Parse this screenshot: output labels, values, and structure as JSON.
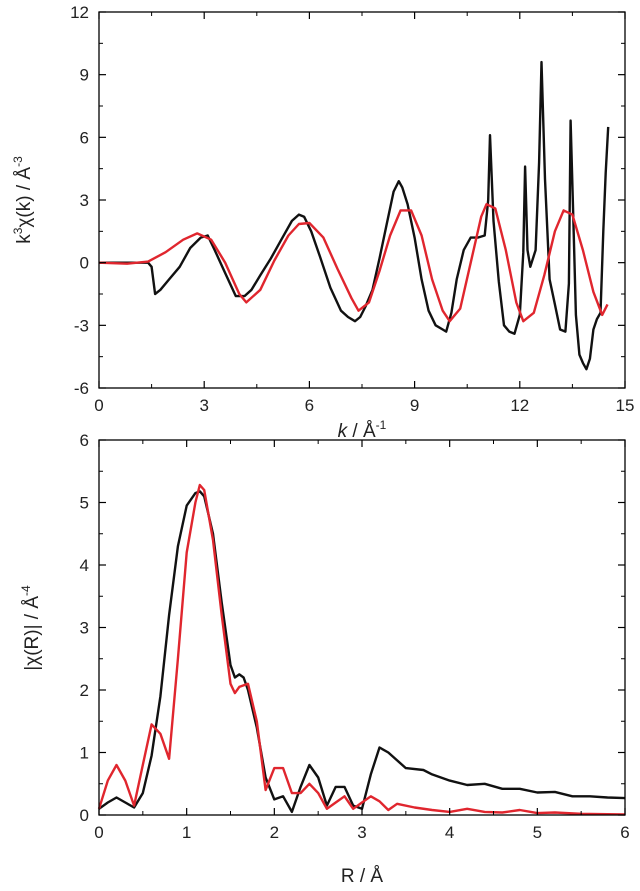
{
  "colors": {
    "experiment": "#111111",
    "fit": "#e0262e",
    "axis": "#000000"
  },
  "chart_data": [
    {
      "type": "line",
      "xlabel": {
        "italic": "k",
        "text": " / Å",
        "sup": "-1"
      },
      "ylabel": {
        "pre": "k",
        "sup1": "3",
        "mid": "χ(k) / Å",
        "sup2": "-3"
      },
      "xlim": [
        0,
        15
      ],
      "ylim": [
        -6,
        12
      ],
      "xticks": [
        0,
        3,
        6,
        9,
        12,
        15
      ],
      "yticks": [
        -6,
        -3,
        0,
        3,
        6,
        9,
        12
      ],
      "xtick_labels": [
        "0",
        "3",
        "6",
        "9",
        "12",
        "15"
      ],
      "ytick_labels": [
        "-6",
        "-3",
        "0",
        "3",
        "6",
        "9",
        "12"
      ],
      "grid": false,
      "series": [
        {
          "color": "#111111",
          "x": [
            0,
            1.4,
            1.5,
            1.6,
            1.75,
            2.0,
            2.3,
            2.6,
            2.9,
            3.1,
            3.3,
            3.6,
            3.9,
            4.15,
            4.35,
            4.6,
            4.9,
            5.2,
            5.5,
            5.7,
            5.85,
            6.05,
            6.3,
            6.6,
            6.9,
            7.1,
            7.3,
            7.45,
            7.6,
            7.8,
            8.0,
            8.2,
            8.4,
            8.55,
            8.65,
            8.8,
            9.0,
            9.2,
            9.4,
            9.6,
            9.8,
            9.9,
            10.05,
            10.2,
            10.4,
            10.6,
            10.8,
            11.0,
            11.1,
            11.15,
            11.25,
            11.4,
            11.55,
            11.7,
            11.85,
            12.0,
            12.1,
            12.15,
            12.22,
            12.3,
            12.45,
            12.55,
            12.62,
            12.72,
            12.85,
            13.0,
            13.15,
            13.3,
            13.4,
            13.45,
            13.52,
            13.6,
            13.7,
            13.8,
            13.9,
            14.0,
            14.1,
            14.2,
            14.3,
            14.38,
            14.45,
            14.52
          ],
          "values": [
            0,
            0,
            -0.2,
            -1.5,
            -1.3,
            -0.8,
            -0.2,
            0.7,
            1.2,
            1.3,
            0.6,
            -0.5,
            -1.6,
            -1.6,
            -1.3,
            -0.6,
            0.2,
            1.1,
            2.0,
            2.3,
            2.2,
            1.5,
            0.3,
            -1.2,
            -2.3,
            -2.6,
            -2.8,
            -2.6,
            -2.1,
            -1.3,
            0.2,
            1.8,
            3.4,
            3.9,
            3.6,
            2.8,
            1.2,
            -0.8,
            -2.3,
            -3.0,
            -3.2,
            -3.3,
            -2.4,
            -0.8,
            0.6,
            1.2,
            1.2,
            1.3,
            3.0,
            6.1,
            2.0,
            -0.9,
            -3.0,
            -3.3,
            -3.4,
            -2.5,
            0.5,
            4.6,
            0.6,
            -0.2,
            0.6,
            4.8,
            9.6,
            4.0,
            -0.8,
            -2.0,
            -3.2,
            -3.3,
            -1.0,
            6.8,
            2.5,
            -2.5,
            -4.4,
            -4.8,
            -5.1,
            -4.6,
            -3.2,
            -2.7,
            -2.4,
            1.5,
            4.3,
            6.5
          ]
        },
        {
          "color": "#e0262e",
          "x": [
            0,
            0.8,
            1.4,
            1.9,
            2.4,
            2.8,
            3.2,
            3.6,
            4.0,
            4.2,
            4.6,
            5.0,
            5.4,
            5.7,
            6.0,
            6.4,
            6.8,
            7.2,
            7.4,
            7.7,
            8.0,
            8.3,
            8.6,
            8.9,
            9.2,
            9.5,
            9.8,
            10.0,
            10.3,
            10.6,
            10.9,
            11.05,
            11.3,
            11.6,
            11.9,
            12.1,
            12.4,
            12.7,
            13.0,
            13.25,
            13.5,
            13.8,
            14.1,
            14.35,
            14.5
          ],
          "values": [
            0,
            -0.05,
            0.05,
            0.5,
            1.1,
            1.4,
            1.1,
            0.0,
            -1.5,
            -1.9,
            -1.3,
            0.1,
            1.3,
            1.85,
            1.9,
            1.2,
            -0.3,
            -1.7,
            -2.3,
            -1.9,
            -0.4,
            1.3,
            2.5,
            2.5,
            1.3,
            -0.8,
            -2.3,
            -2.8,
            -2.2,
            0.0,
            2.2,
            2.8,
            2.6,
            0.6,
            -1.9,
            -2.8,
            -2.4,
            -0.6,
            1.5,
            2.5,
            2.3,
            0.6,
            -1.4,
            -2.5,
            -2.0
          ]
        }
      ]
    },
    {
      "type": "line",
      "xlabel": {
        "text": "R / Å"
      },
      "ylabel": {
        "text": "|χ(R)| / Å",
        "sup": "-4"
      },
      "xlim": [
        0,
        6
      ],
      "ylim": [
        0,
        6
      ],
      "xticks": [
        0,
        1,
        2,
        3,
        4,
        5,
        6
      ],
      "yticks": [
        0,
        1,
        2,
        3,
        4,
        5,
        6
      ],
      "xtick_labels": [
        "0",
        "1",
        "2",
        "3",
        "4",
        "5",
        "6"
      ],
      "ytick_labels": [
        "0",
        "1",
        "2",
        "3",
        "4",
        "5",
        "6"
      ],
      "grid": false,
      "series": [
        {
          "color": "#111111",
          "x": [
            0,
            0.1,
            0.2,
            0.3,
            0.4,
            0.5,
            0.6,
            0.7,
            0.8,
            0.9,
            1.0,
            1.1,
            1.15,
            1.2,
            1.3,
            1.4,
            1.5,
            1.55,
            1.6,
            1.65,
            1.7,
            1.8,
            1.9,
            2.0,
            2.1,
            2.2,
            2.3,
            2.4,
            2.5,
            2.6,
            2.7,
            2.8,
            2.9,
            3.0,
            3.1,
            3.2,
            3.3,
            3.5,
            3.7,
            3.8,
            4.0,
            4.2,
            4.4,
            4.6,
            4.8,
            5.0,
            5.2,
            5.4,
            5.6,
            5.8,
            6.0
          ],
          "values": [
            0.1,
            0.2,
            0.28,
            0.2,
            0.12,
            0.35,
            0.95,
            1.9,
            3.2,
            4.3,
            4.95,
            5.15,
            5.18,
            5.1,
            4.5,
            3.4,
            2.4,
            2.2,
            2.25,
            2.2,
            2.0,
            1.4,
            0.6,
            0.25,
            0.3,
            0.05,
            0.45,
            0.8,
            0.6,
            0.15,
            0.45,
            0.45,
            0.15,
            0.1,
            0.65,
            1.08,
            1.0,
            0.75,
            0.72,
            0.65,
            0.55,
            0.48,
            0.5,
            0.42,
            0.42,
            0.36,
            0.37,
            0.3,
            0.3,
            0.28,
            0.27
          ]
        },
        {
          "color": "#e0262e",
          "x": [
            0,
            0.1,
            0.2,
            0.3,
            0.4,
            0.5,
            0.6,
            0.7,
            0.8,
            0.9,
            1.0,
            1.1,
            1.15,
            1.2,
            1.3,
            1.4,
            1.5,
            1.55,
            1.6,
            1.7,
            1.8,
            1.9,
            2.0,
            2.1,
            2.2,
            2.3,
            2.4,
            2.5,
            2.6,
            2.7,
            2.8,
            2.9,
            3.0,
            3.1,
            3.2,
            3.3,
            3.4,
            3.6,
            3.8,
            4.0,
            4.2,
            4.4,
            4.6,
            4.8,
            5.0,
            5.2,
            5.5,
            6.0
          ],
          "values": [
            0.1,
            0.55,
            0.8,
            0.55,
            0.15,
            0.8,
            1.45,
            1.3,
            0.9,
            2.5,
            4.2,
            5.0,
            5.28,
            5.2,
            4.4,
            3.2,
            2.1,
            1.95,
            2.05,
            2.1,
            1.5,
            0.4,
            0.75,
            0.75,
            0.35,
            0.35,
            0.5,
            0.35,
            0.1,
            0.2,
            0.3,
            0.1,
            0.2,
            0.3,
            0.22,
            0.08,
            0.18,
            0.12,
            0.08,
            0.05,
            0.1,
            0.05,
            0.04,
            0.08,
            0.03,
            0.04,
            0.02,
            0.01
          ]
        }
      ]
    }
  ]
}
